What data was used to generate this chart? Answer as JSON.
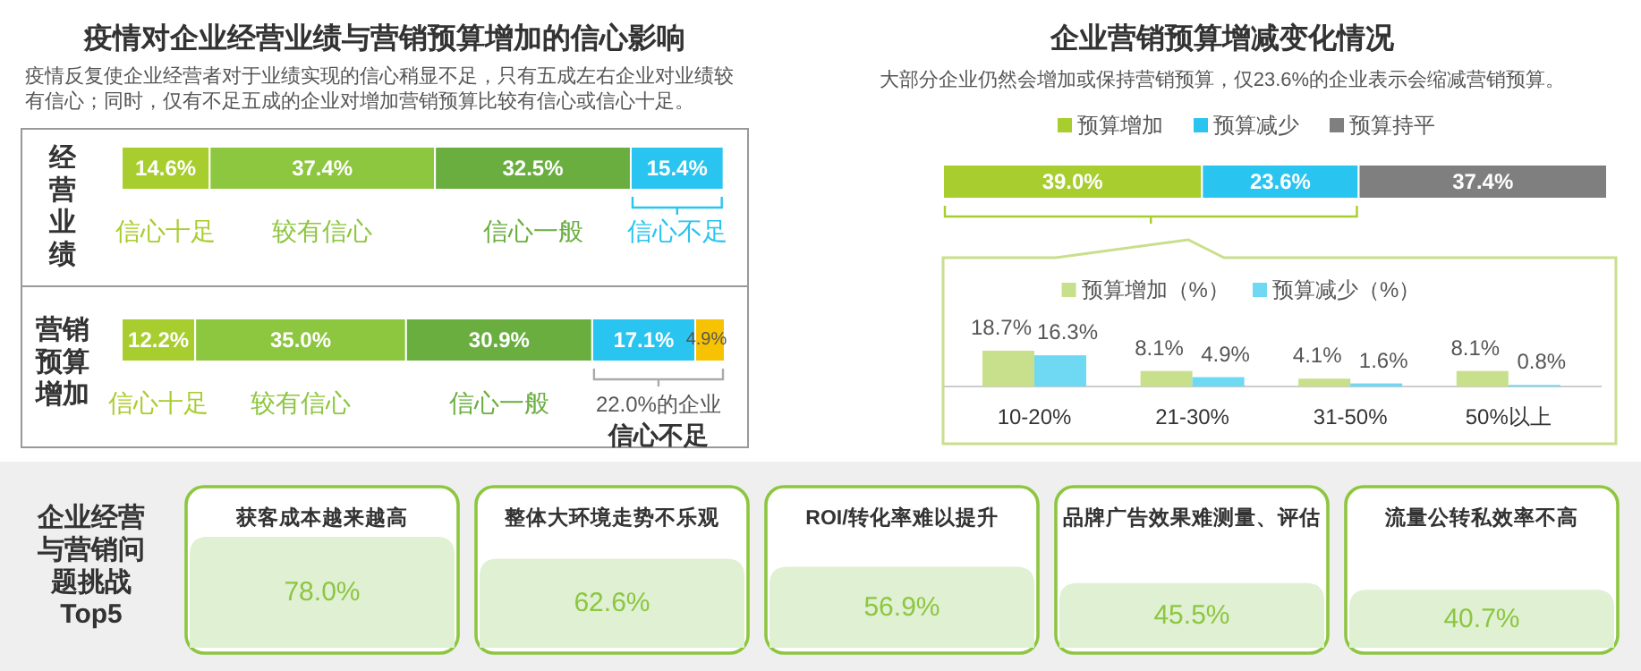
{
  "chart_data": [
    {
      "type": "bar",
      "orientation": "horizontal",
      "stacked": true,
      "title": "疫情对企业经营业绩与营销预算增加的信心影响",
      "subtitle": "疫情反复使企业经营者对于业绩实现的信心稍显不足，只有五成左右企业对业绩较有信心；同时，仅有不足五成的企业对增加营销预算比较有信心或信心十足。",
      "categories": [
        "经营业绩",
        "营销预算增加"
      ],
      "series": [
        {
          "name": "信心十足",
          "color": "#a8cd2e",
          "values": [
            14.6,
            12.2
          ],
          "value_labels": [
            "14.6%",
            "12.2%"
          ]
        },
        {
          "name": "较有信心",
          "color": "#8dc63f",
          "values": [
            37.4,
            35.0
          ],
          "value_labels": [
            "37.4%",
            "35.0%"
          ]
        },
        {
          "name": "信心一般",
          "color": "#6aae40",
          "values": [
            32.5,
            30.9
          ],
          "value_labels": [
            "32.5%",
            "30.9%"
          ]
        },
        {
          "name": "信心不足",
          "color": "#29c4f0",
          "values": [
            15.4,
            17.1
          ],
          "value_labels": [
            "15.4%",
            "17.1%"
          ]
        },
        {
          "color": "#f7c202",
          "values": [
            null,
            4.9
          ],
          "value_labels": [
            null,
            "4.9%"
          ]
        }
      ],
      "annotations": [
        "22.0%的企业",
        "信心不足"
      ]
    },
    {
      "type": "bar",
      "orientation": "horizontal",
      "stacked": true,
      "title": "企业营销预算增减变化情况",
      "subtitle": "大部分企业仍然会增加或保持营销预算，仅23.6%的企业表示会缩减营销预算。",
      "categories": [
        null
      ],
      "series": [
        {
          "name": "预算增加",
          "color": "#a8cd2e",
          "values": [
            39.0
          ],
          "value_labels": [
            "39.0%"
          ]
        },
        {
          "name": "预算减少",
          "color": "#29c4f0",
          "values": [
            23.6
          ],
          "value_labels": [
            "23.6%"
          ]
        },
        {
          "name": "预算持平",
          "color": "#7f7f7f",
          "values": [
            37.4
          ],
          "value_labels": [
            "37.4%"
          ]
        }
      ],
      "legend": "top"
    },
    {
      "type": "bar",
      "categories": [
        "10-20%",
        "21-30%",
        "31-50%",
        "50%以上"
      ],
      "series": [
        {
          "name": "预算增加（%）",
          "color": "#c8df8c",
          "values": [
            18.7,
            8.1,
            4.1,
            8.1
          ],
          "value_labels": [
            "18.7%",
            "8.1%",
            "4.1%",
            "8.1%"
          ]
        },
        {
          "name": "预算减少（%）",
          "color": "#6fd8f2",
          "values": [
            16.3,
            4.9,
            1.6,
            0.8
          ],
          "value_labels": [
            "16.3%",
            "4.9%",
            "1.6%",
            "0.8%"
          ]
        }
      ],
      "legend": "top"
    },
    {
      "type": "bar",
      "title": "企业经营与营销问题挑战Top5",
      "categories": [
        "获客成本越来越高",
        "整体大环境走势不乐观",
        "ROI/转化率难以提升",
        "品牌广告效果难测量、评估",
        "流量公转私效率不高"
      ],
      "values": [
        78.0,
        62.6,
        56.9,
        45.5,
        40.7
      ],
      "value_labels": [
        "78.0%",
        "62.6%",
        "56.9%",
        "45.5%",
        "40.7%"
      ],
      "color": "#dff0d3"
    }
  ]
}
